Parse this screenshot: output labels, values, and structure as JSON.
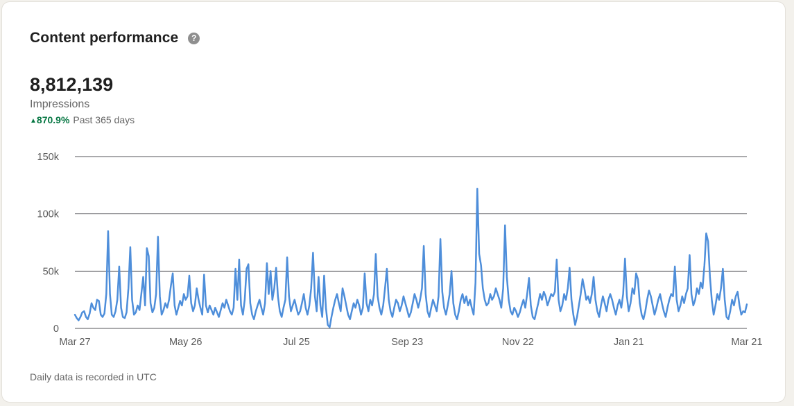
{
  "header": {
    "title": "Content performance",
    "help_glyph": "?"
  },
  "stats": {
    "value": "8,812,139",
    "label": "Impressions",
    "trend_arrow": "▲",
    "trend_percent": "870.9%",
    "trend_period": "Past 365 days"
  },
  "footer": {
    "note": "Daily data is recorded in UTC"
  },
  "colors": {
    "line_blue": "#4e8eda",
    "positive_green": "#057642",
    "grid": "#55555a",
    "axis_text": "#5a5a5a",
    "text_primary": "#1f1f1f",
    "text_secondary": "#666666",
    "card_bg": "#ffffff",
    "page_bg": "#f3f1ec",
    "help_icon_bg": "#8f8f8f"
  },
  "chart_data": {
    "type": "line",
    "title": "Daily impressions over the past 365 days",
    "xlabel": "",
    "ylabel": "Impressions",
    "ylim": [
      0,
      150
    ],
    "y_unit": "thousands of impressions",
    "grid": "horizontal",
    "legend": "none",
    "line_color": "#4e8eda",
    "x_range_days": 365,
    "y_ticks": [
      {
        "label": "0",
        "value": 0
      },
      {
        "label": "50k",
        "value": 50
      },
      {
        "label": "100k",
        "value": 100
      },
      {
        "label": "150k",
        "value": 150
      }
    ],
    "x_ticks": [
      {
        "label": "Mar 27",
        "day": 0
      },
      {
        "label": "May 26",
        "day": 60
      },
      {
        "label": "Jul 25",
        "day": 120
      },
      {
        "label": "Sep 23",
        "day": 180
      },
      {
        "label": "Nov 22",
        "day": 240
      },
      {
        "label": "Jan 21",
        "day": 300
      },
      {
        "label": "Mar 21",
        "day": 364
      }
    ],
    "series": [
      {
        "name": "Impressions",
        "unit": "thousands",
        "values": [
          12,
          9,
          7,
          10,
          14,
          15,
          10,
          8,
          13,
          22,
          18,
          16,
          25,
          24,
          12,
          10,
          13,
          30,
          85,
          30,
          12,
          10,
          15,
          25,
          54,
          18,
          10,
          9,
          14,
          35,
          71,
          25,
          12,
          14,
          20,
          16,
          30,
          45,
          20,
          70,
          63,
          22,
          14,
          18,
          30,
          80,
          28,
          12,
          16,
          22,
          18,
          25,
          37,
          48,
          20,
          12,
          18,
          24,
          20,
          30,
          25,
          28,
          46,
          22,
          15,
          20,
          35,
          25,
          18,
          12,
          47,
          20,
          14,
          20,
          16,
          12,
          18,
          14,
          10,
          16,
          22,
          18,
          25,
          20,
          15,
          12,
          18,
          52,
          25,
          60,
          20,
          12,
          25,
          52,
          56,
          22,
          12,
          8,
          15,
          20,
          25,
          18,
          12,
          22,
          57,
          30,
          50,
          25,
          35,
          53,
          28,
          15,
          10,
          18,
          25,
          62,
          28,
          15,
          20,
          25,
          18,
          12,
          15,
          22,
          30,
          18,
          12,
          20,
          35,
          66,
          28,
          15,
          45,
          20,
          10,
          46,
          18,
          3,
          1,
          10,
          18,
          25,
          30,
          22,
          15,
          35,
          28,
          20,
          12,
          8,
          15,
          22,
          18,
          25,
          20,
          12,
          18,
          48,
          22,
          15,
          25,
          20,
          30,
          65,
          28,
          18,
          12,
          20,
          35,
          52,
          25,
          15,
          10,
          18,
          25,
          22,
          15,
          20,
          28,
          22,
          16,
          10,
          14,
          22,
          30,
          25,
          18,
          25,
          35,
          72,
          30,
          15,
          10,
          18,
          25,
          20,
          15,
          28,
          78,
          32,
          18,
          12,
          20,
          30,
          50,
          22,
          12,
          8,
          15,
          25,
          30,
          22,
          28,
          20,
          25,
          18,
          12,
          40,
          122,
          65,
          55,
          35,
          25,
          20,
          22,
          30,
          25,
          28,
          35,
          30,
          25,
          18,
          35,
          90,
          45,
          25,
          15,
          12,
          18,
          15,
          10,
          14,
          20,
          25,
          18,
          30,
          44,
          20,
          10,
          8,
          15,
          22,
          30,
          25,
          32,
          28,
          20,
          25,
          30,
          28,
          32,
          60,
          25,
          15,
          20,
          30,
          25,
          35,
          53,
          25,
          12,
          3,
          10,
          20,
          30,
          43,
          35,
          25,
          28,
          22,
          30,
          45,
          25,
          15,
          10,
          20,
          28,
          22,
          15,
          25,
          30,
          25,
          18,
          12,
          20,
          25,
          18,
          30,
          61,
          28,
          15,
          22,
          35,
          30,
          48,
          43,
          22,
          12,
          8,
          15,
          25,
          33,
          28,
          20,
          12,
          18,
          25,
          30,
          22,
          15,
          10,
          18,
          25,
          30,
          28,
          54,
          25,
          15,
          20,
          28,
          22,
          30,
          35,
          64,
          30,
          20,
          25,
          35,
          30,
          40,
          35,
          55,
          83,
          76,
          45,
          25,
          12,
          20,
          30,
          25,
          35,
          52,
          25,
          10,
          8,
          15,
          25,
          20,
          28,
          32,
          20,
          12,
          15,
          14,
          21
        ]
      }
    ]
  }
}
